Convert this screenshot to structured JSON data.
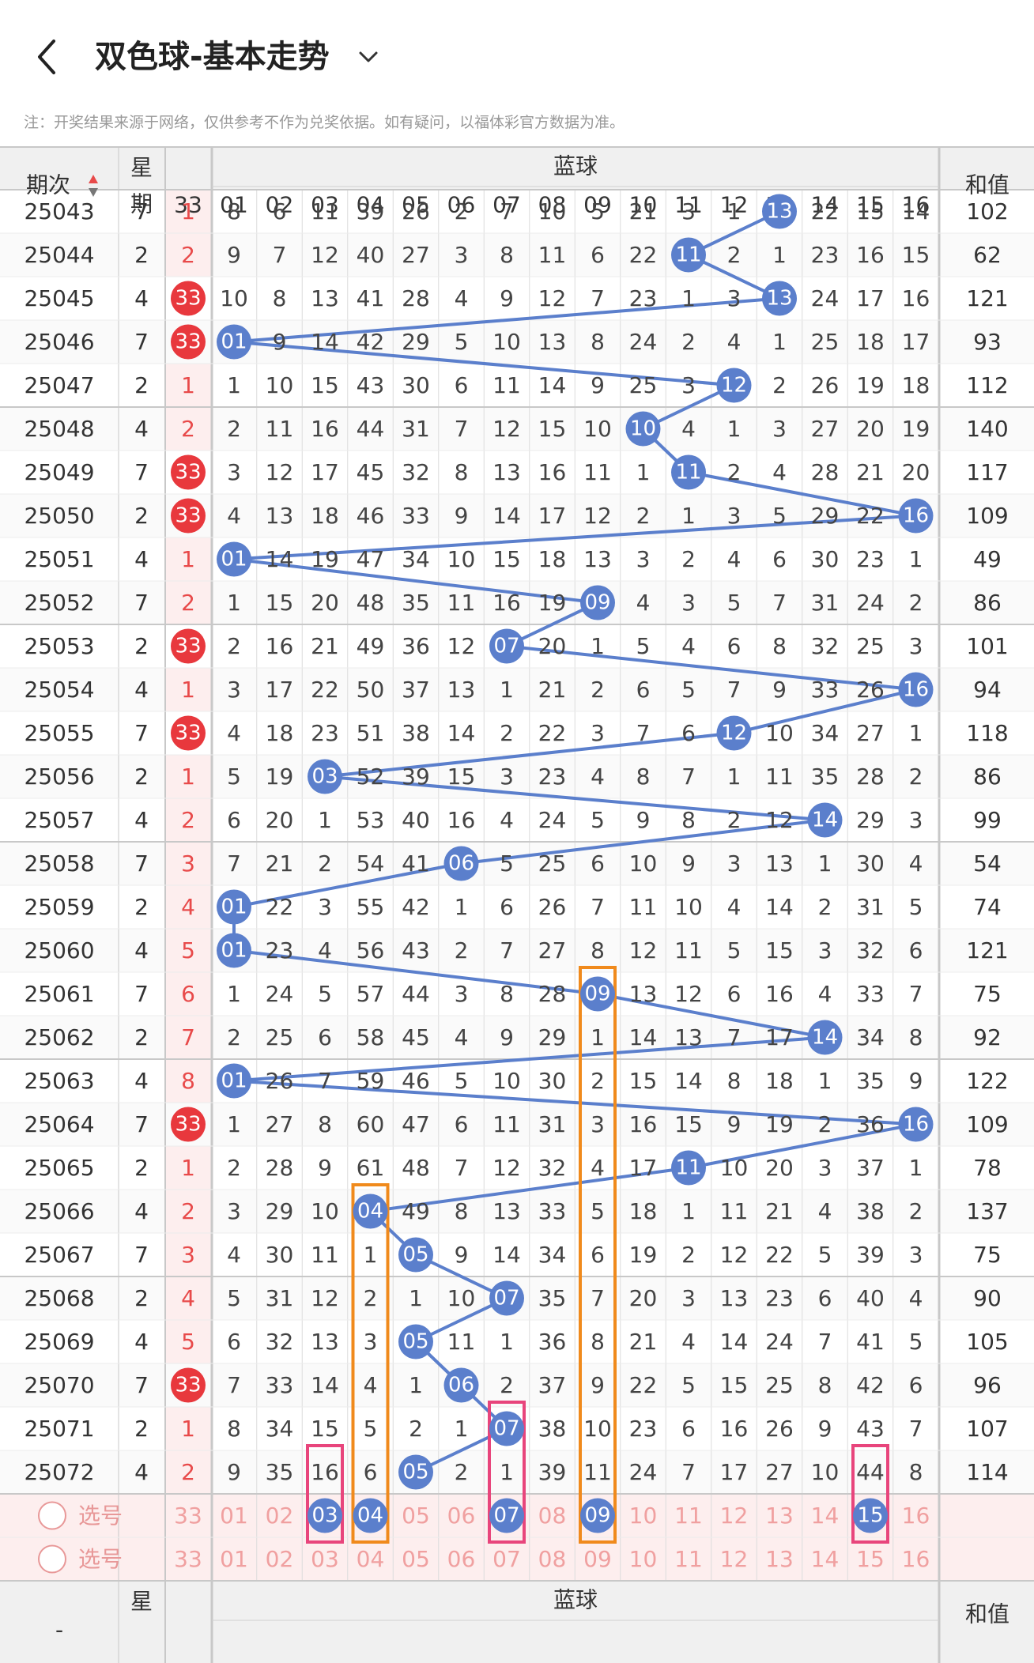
{
  "header": {
    "title": "双色球-基本走势"
  },
  "note": "注：开奖结果来源于网络，仅供参考不作为兑奖依据。如有疑问，以福体彩官方数据为准。",
  "table": {
    "col_period": "期次",
    "col_weekday": "星期",
    "blue_group_label": "蓝球",
    "col_red33": "33",
    "blue_cols": [
      "01",
      "02",
      "03",
      "04",
      "05",
      "06",
      "07",
      "08",
      "09",
      "10",
      "11",
      "12",
      "13",
      "14",
      "15",
      "16"
    ],
    "col_sum": "和值",
    "rows": [
      {
        "period": "25043",
        "weekday": "7",
        "red33": "1",
        "blue": [
          "8",
          "6",
          "11",
          "39",
          "26",
          "2",
          "7",
          "10",
          "5",
          "21",
          "3",
          "1",
          "13",
          "22",
          "15",
          "14"
        ],
        "sum": "102"
      },
      {
        "period": "25044",
        "weekday": "2",
        "red33": "2",
        "blue": [
          "9",
          "7",
          "12",
          "40",
          "27",
          "3",
          "8",
          "11",
          "6",
          "22",
          "11",
          "2",
          "1",
          "23",
          "16",
          "15"
        ],
        "sum": "62"
      },
      {
        "period": "25045",
        "weekday": "4",
        "red33": "33",
        "blue": [
          "10",
          "8",
          "13",
          "41",
          "28",
          "4",
          "9",
          "12",
          "7",
          "23",
          "1",
          "3",
          "13",
          "24",
          "17",
          "16"
        ],
        "sum": "121"
      },
      {
        "period": "25046",
        "weekday": "7",
        "red33": "33",
        "blue": [
          "01",
          "9",
          "14",
          "42",
          "29",
          "5",
          "10",
          "13",
          "8",
          "24",
          "2",
          "4",
          "1",
          "25",
          "18",
          "17"
        ],
        "sum": "93"
      },
      {
        "period": "25047",
        "weekday": "2",
        "red33": "1",
        "blue": [
          "1",
          "10",
          "15",
          "43",
          "30",
          "6",
          "11",
          "14",
          "9",
          "25",
          "3",
          "12",
          "2",
          "26",
          "19",
          "18"
        ],
        "sum": "112"
      },
      {
        "period": "25048",
        "weekday": "4",
        "red33": "2",
        "blue": [
          "2",
          "11",
          "16",
          "44",
          "31",
          "7",
          "12",
          "15",
          "10",
          "10",
          "4",
          "1",
          "3",
          "27",
          "20",
          "19"
        ],
        "sum": "140"
      },
      {
        "period": "25049",
        "weekday": "7",
        "red33": "33",
        "blue": [
          "3",
          "12",
          "17",
          "45",
          "32",
          "8",
          "13",
          "16",
          "11",
          "1",
          "11",
          "2",
          "4",
          "28",
          "21",
          "20"
        ],
        "sum": "117"
      },
      {
        "period": "25050",
        "weekday": "2",
        "red33": "33",
        "blue": [
          "4",
          "13",
          "18",
          "46",
          "33",
          "9",
          "14",
          "17",
          "12",
          "2",
          "1",
          "3",
          "5",
          "29",
          "22",
          "16"
        ],
        "sum": "109"
      },
      {
        "period": "25051",
        "weekday": "4",
        "red33": "1",
        "blue": [
          "01",
          "14",
          "19",
          "47",
          "34",
          "10",
          "15",
          "18",
          "13",
          "3",
          "2",
          "4",
          "6",
          "30",
          "23",
          "1"
        ],
        "sum": "49"
      },
      {
        "period": "25052",
        "weekday": "7",
        "red33": "2",
        "blue": [
          "1",
          "15",
          "20",
          "48",
          "35",
          "11",
          "16",
          "19",
          "09",
          "4",
          "3",
          "5",
          "7",
          "31",
          "24",
          "2"
        ],
        "sum": "86"
      },
      {
        "period": "25053",
        "weekday": "2",
        "red33": "33",
        "blue": [
          "2",
          "16",
          "21",
          "49",
          "36",
          "12",
          "07",
          "20",
          "1",
          "5",
          "4",
          "6",
          "8",
          "32",
          "25",
          "3"
        ],
        "sum": "101"
      },
      {
        "period": "25054",
        "weekday": "4",
        "red33": "1",
        "blue": [
          "3",
          "17",
          "22",
          "50",
          "37",
          "13",
          "1",
          "21",
          "2",
          "6",
          "5",
          "7",
          "9",
          "33",
          "26",
          "16"
        ],
        "sum": "94"
      },
      {
        "period": "25055",
        "weekday": "7",
        "red33": "33",
        "blue": [
          "4",
          "18",
          "23",
          "51",
          "38",
          "14",
          "2",
          "22",
          "3",
          "7",
          "6",
          "12",
          "10",
          "34",
          "27",
          "1"
        ],
        "sum": "118"
      },
      {
        "period": "25056",
        "weekday": "2",
        "red33": "1",
        "blue": [
          "5",
          "19",
          "03",
          "52",
          "39",
          "15",
          "3",
          "23",
          "4",
          "8",
          "7",
          "1",
          "11",
          "35",
          "28",
          "2"
        ],
        "sum": "86"
      },
      {
        "period": "25057",
        "weekday": "4",
        "red33": "2",
        "blue": [
          "6",
          "20",
          "1",
          "53",
          "40",
          "16",
          "4",
          "24",
          "5",
          "9",
          "8",
          "2",
          "12",
          "14",
          "29",
          "3"
        ],
        "sum": "99"
      },
      {
        "period": "25058",
        "weekday": "7",
        "red33": "3",
        "blue": [
          "7",
          "21",
          "2",
          "54",
          "41",
          "06",
          "5",
          "25",
          "6",
          "10",
          "9",
          "3",
          "13",
          "1",
          "30",
          "4"
        ],
        "sum": "54"
      },
      {
        "period": "25059",
        "weekday": "2",
        "red33": "4",
        "blue": [
          "01",
          "22",
          "3",
          "55",
          "42",
          "1",
          "6",
          "26",
          "7",
          "11",
          "10",
          "4",
          "14",
          "2",
          "31",
          "5"
        ],
        "sum": "74"
      },
      {
        "period": "25060",
        "weekday": "4",
        "red33": "5",
        "blue": [
          "01",
          "23",
          "4",
          "56",
          "43",
          "2",
          "7",
          "27",
          "8",
          "12",
          "11",
          "5",
          "15",
          "3",
          "32",
          "6"
        ],
        "sum": "121"
      },
      {
        "period": "25061",
        "weekday": "7",
        "red33": "6",
        "blue": [
          "1",
          "24",
          "5",
          "57",
          "44",
          "3",
          "8",
          "28",
          "09",
          "13",
          "12",
          "6",
          "16",
          "4",
          "33",
          "7"
        ],
        "sum": "75"
      },
      {
        "period": "25062",
        "weekday": "2",
        "red33": "7",
        "blue": [
          "2",
          "25",
          "6",
          "58",
          "45",
          "4",
          "9",
          "29",
          "1",
          "14",
          "13",
          "7",
          "17",
          "14",
          "34",
          "8"
        ],
        "sum": "92"
      },
      {
        "period": "25063",
        "weekday": "4",
        "red33": "8",
        "blue": [
          "01",
          "26",
          "7",
          "59",
          "46",
          "5",
          "10",
          "30",
          "2",
          "15",
          "14",
          "8",
          "18",
          "1",
          "35",
          "9"
        ],
        "sum": "122"
      },
      {
        "period": "25064",
        "weekday": "7",
        "red33": "33",
        "blue": [
          "1",
          "27",
          "8",
          "60",
          "47",
          "6",
          "11",
          "31",
          "3",
          "16",
          "15",
          "9",
          "19",
          "2",
          "36",
          "16"
        ],
        "sum": "109"
      },
      {
        "period": "25065",
        "weekday": "2",
        "red33": "1",
        "blue": [
          "2",
          "28",
          "9",
          "61",
          "48",
          "7",
          "12",
          "32",
          "4",
          "17",
          "11",
          "10",
          "20",
          "3",
          "37",
          "1"
        ],
        "sum": "78"
      },
      {
        "period": "25066",
        "weekday": "4",
        "red33": "2",
        "blue": [
          "3",
          "29",
          "10",
          "04",
          "49",
          "8",
          "13",
          "33",
          "5",
          "18",
          "1",
          "11",
          "21",
          "4",
          "38",
          "2"
        ],
        "sum": "137"
      },
      {
        "period": "25067",
        "weekday": "7",
        "red33": "3",
        "blue": [
          "4",
          "30",
          "11",
          "1",
          "05",
          "9",
          "14",
          "34",
          "6",
          "19",
          "2",
          "12",
          "22",
          "5",
          "39",
          "3"
        ],
        "sum": "75"
      },
      {
        "period": "25068",
        "weekday": "2",
        "red33": "4",
        "blue": [
          "5",
          "31",
          "12",
          "2",
          "1",
          "10",
          "07",
          "35",
          "7",
          "20",
          "3",
          "13",
          "23",
          "6",
          "40",
          "4"
        ],
        "sum": "90"
      },
      {
        "period": "25069",
        "weekday": "4",
        "red33": "5",
        "blue": [
          "6",
          "32",
          "13",
          "3",
          "05",
          "11",
          "1",
          "36",
          "8",
          "21",
          "4",
          "14",
          "24",
          "7",
          "41",
          "5"
        ],
        "sum": "105"
      },
      {
        "period": "25070",
        "weekday": "7",
        "red33": "33",
        "blue": [
          "7",
          "33",
          "14",
          "4",
          "1",
          "06",
          "2",
          "37",
          "9",
          "22",
          "5",
          "15",
          "25",
          "8",
          "42",
          "6"
        ],
        "sum": "96"
      },
      {
        "period": "25071",
        "weekday": "2",
        "red33": "1",
        "blue": [
          "8",
          "34",
          "15",
          "5",
          "2",
          "1",
          "07",
          "38",
          "10",
          "23",
          "6",
          "16",
          "26",
          "9",
          "43",
          "7"
        ],
        "sum": "107"
      },
      {
        "period": "25072",
        "weekday": "4",
        "red33": "2",
        "blue": [
          "9",
          "35",
          "16",
          "6",
          "05",
          "2",
          "1",
          "39",
          "11",
          "24",
          "7",
          "17",
          "27",
          "10",
          "44",
          "8"
        ],
        "sum": "114"
      }
    ],
    "select_label": "选号",
    "select_numbers": [
      "33",
      "01",
      "02",
      "03",
      "04",
      "05",
      "06",
      "07",
      "08",
      "09",
      "10",
      "11",
      "12",
      "13",
      "14",
      "15",
      "16"
    ],
    "select_row1_picked": [
      "03",
      "04",
      "07",
      "09",
      "15"
    ],
    "bottom_header": {
      "col_period": "-",
      "col_weekday": "星",
      "blue_group_label": "蓝球",
      "col_sum": "和值"
    }
  },
  "colors": {
    "blue_ball": "#5b7fcc",
    "trend_line": "#5b7fcc",
    "red_ball": "#e8383d",
    "red_text": "#e84a4a",
    "pick_box_orange": "#f08a1c",
    "pick_box_pink": "#e8457c",
    "select_bg": "#fdeeee",
    "header_bg": "#f0f0f0"
  }
}
